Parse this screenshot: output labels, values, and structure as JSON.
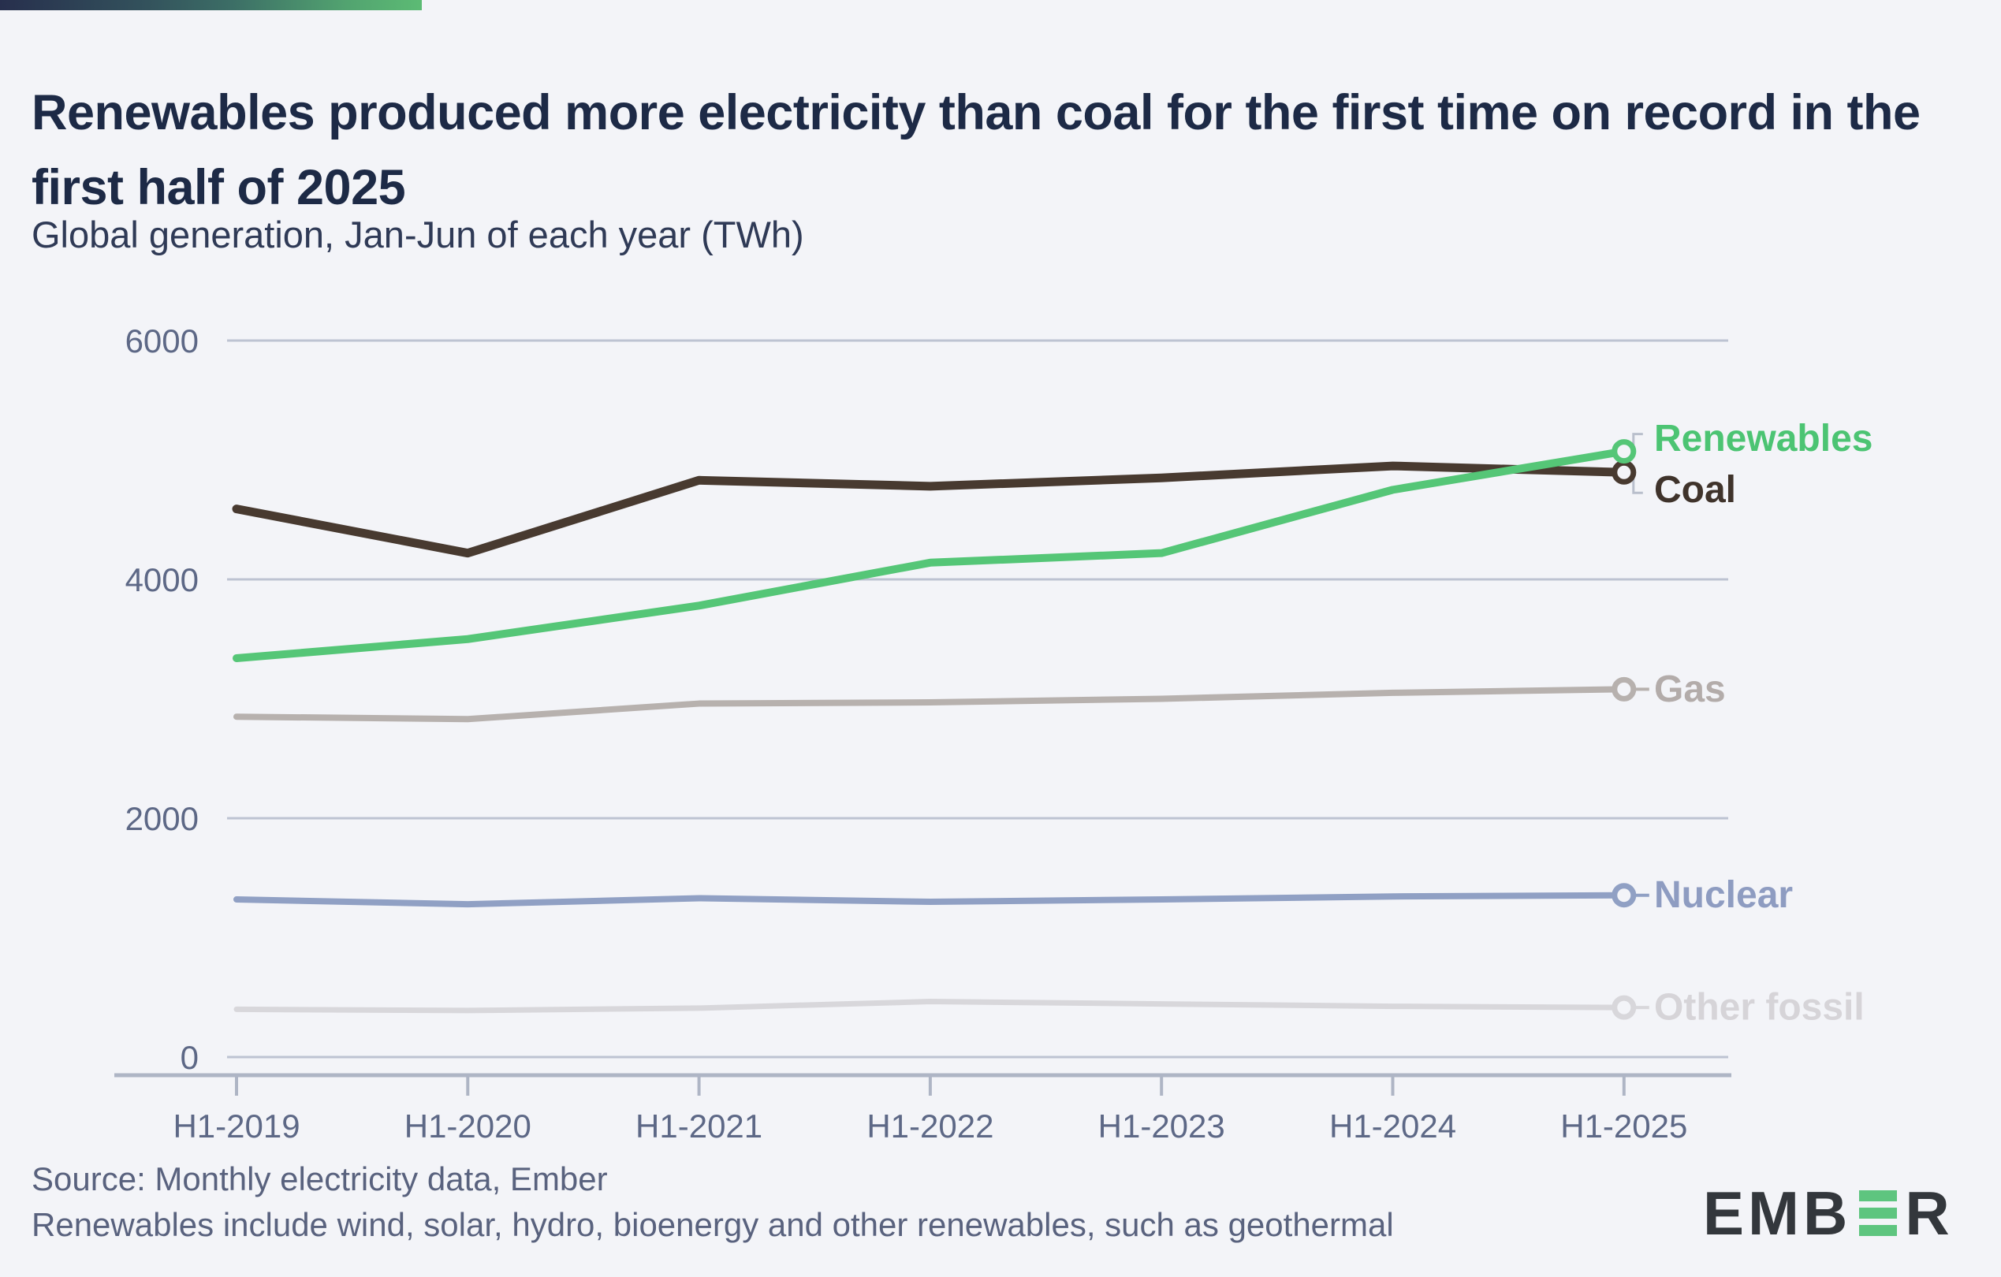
{
  "header": {
    "title": "Renewables produced more electricity than coal for the first time on record in the first half of 2025",
    "subtitle": "Global generation, Jan-Jun of each year (TWh)"
  },
  "footer": {
    "source_line": "Source: Monthly electricity data, Ember",
    "note_line": "Renewables include wind, solar, hydro, bioenergy and other renewables, such as geothermal"
  },
  "logo": {
    "prefix": "EMB",
    "suffix": "R",
    "green_e_icon": "ember-green-e-icon",
    "text_color": "#33373c",
    "green_color": "#5ec57f"
  },
  "colors": {
    "background": "#f3f4f8",
    "gradient_start": "#272f4d",
    "gradient_mid": "#3c6e66",
    "gradient_end": "#5cbb74",
    "gridline": "#bdc3d2",
    "axis_line": "#aeb5c5",
    "axis_text": "#5d6886",
    "title_text": "#1d2a46",
    "subtitle_text": "#2f3a56",
    "footer_text": "#59627e",
    "leader": "#b9bfcc"
  },
  "chart_data": {
    "type": "line",
    "title": "Renewables produced more electricity than coal for the first time on record in the first half of 2025",
    "subtitle": "Global generation, Jan-Jun of each year (TWh)",
    "unit": "TWh",
    "categories": [
      "H1-2019",
      "H1-2020",
      "H1-2021",
      "H1-2022",
      "H1-2023",
      "H1-2024",
      "H1-2025"
    ],
    "series": [
      {
        "name": "Other fossil",
        "color": "#d8d7db",
        "label_color": "#d6d4d8",
        "values": [
          400,
          390,
          410,
          465,
          445,
          425,
          415
        ]
      },
      {
        "name": "Nuclear",
        "color": "#90a0c4",
        "label_color": "#8e9cc1",
        "values": [
          1320,
          1280,
          1330,
          1300,
          1320,
          1345,
          1355
        ]
      },
      {
        "name": "Gas",
        "color": "#b7b1ae",
        "label_color": "#b3acaa",
        "values": [
          2850,
          2830,
          2960,
          2970,
          3000,
          3050,
          3080
        ]
      },
      {
        "name": "Coal",
        "color": "#483a30",
        "label_color": "#3f332b",
        "values": [
          4590,
          4220,
          4830,
          4780,
          4850,
          4950,
          4896
        ]
      },
      {
        "name": "Renewables",
        "color": "#55c677",
        "label_color": "#4cc473",
        "values": [
          3340,
          3500,
          3780,
          4140,
          4220,
          4750,
          5072
        ]
      }
    ],
    "yticks": [
      0,
      2000,
      4000,
      6000
    ],
    "ylim": [
      0,
      6600
    ],
    "grid": true,
    "legend_position": "end-of-line-labels",
    "x_axis": true
  }
}
